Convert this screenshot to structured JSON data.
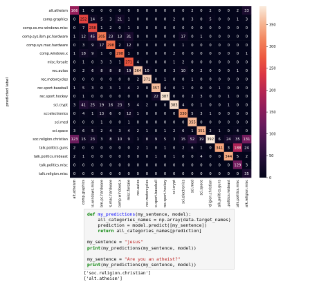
{
  "chart_data": {
    "type": "heatmap",
    "ylabel": "predicted label",
    "categories": [
      "alt.atheism",
      "comp.graphics",
      "comp.os.ms-windows.misc",
      "comp.sys.ibm.pc.hardware",
      "comp.sys.mac.hardware",
      "comp.windows.x",
      "misc.forsale",
      "rec.autos",
      "rec.motorcycles",
      "rec.sport.baseball",
      "rec.sport.hockey",
      "sci.crypt",
      "sci.electronics",
      "sci.med",
      "sci.space",
      "soc.religion.christian",
      "talk.politics.guns",
      "talk.politics.mideast",
      "talk.politics.misc",
      "talk.religion.misc"
    ],
    "values": [
      [
        166,
        1,
        0,
        0,
        0,
        0,
        0,
        0,
        0,
        0,
        0,
        0,
        0,
        2,
        0,
        2,
        0,
        0,
        2,
        33
      ],
      [
        0,
        252,
        14,
        5,
        3,
        21,
        1,
        0,
        0,
        0,
        0,
        2,
        0,
        3,
        0,
        5,
        0,
        0,
        1,
        3
      ],
      [
        0,
        7,
        258,
        1,
        2,
        0,
        1,
        0,
        0,
        0,
        0,
        0,
        0,
        0,
        0,
        0,
        0,
        0,
        0,
        0
      ],
      [
        1,
        12,
        45,
        305,
        23,
        13,
        31,
        0,
        0,
        0,
        0,
        0,
        17,
        0,
        1,
        0,
        0,
        0,
        0,
        0
      ],
      [
        0,
        3,
        9,
        17,
        298,
        2,
        12,
        0,
        0,
        0,
        0,
        0,
        1,
        0,
        0,
        0,
        0,
        0,
        0,
        0
      ],
      [
        1,
        18,
        9,
        1,
        0,
        298,
        1,
        0,
        0,
        0,
        0,
        2,
        0,
        0,
        0,
        0,
        0,
        0,
        0,
        1
      ],
      [
        0,
        1,
        0,
        3,
        3,
        1,
        271,
        4,
        0,
        0,
        0,
        1,
        2,
        0,
        0,
        0,
        0,
        0,
        0,
        0
      ],
      [
        0,
        2,
        6,
        8,
        8,
        8,
        19,
        364,
        10,
        0,
        0,
        3,
        10,
        0,
        2,
        0,
        0,
        0,
        1,
        0
      ],
      [
        0,
        0,
        0,
        0,
        0,
        0,
        0,
        2,
        371,
        0,
        1,
        0,
        0,
        1,
        0,
        0,
        0,
        0,
        0,
        0
      ],
      [
        1,
        5,
        3,
        0,
        3,
        1,
        4,
        2,
        0,
        357,
        4,
        0,
        1,
        0,
        0,
        0,
        1,
        0,
        0,
        0
      ],
      [
        0,
        1,
        0,
        0,
        0,
        0,
        0,
        0,
        0,
        22,
        387,
        0,
        0,
        2,
        3,
        0,
        0,
        1,
        0,
        0
      ],
      [
        3,
        41,
        25,
        19,
        16,
        23,
        5,
        4,
        2,
        0,
        0,
        383,
        4,
        0,
        1,
        0,
        0,
        1,
        0,
        0
      ],
      [
        0,
        4,
        1,
        13,
        6,
        0,
        12,
        1,
        0,
        0,
        0,
        0,
        330,
        5,
        3,
        1,
        0,
        0,
        0,
        0
      ],
      [
        0,
        0,
        0,
        1,
        0,
        0,
        1,
        0,
        0,
        0,
        0,
        0,
        0,
        355,
        0,
        0,
        0,
        0,
        0,
        0
      ],
      [
        3,
        6,
        5,
        2,
        4,
        3,
        4,
        2,
        1,
        0,
        1,
        2,
        6,
        1,
        351,
        2,
        1,
        0,
        4,
        0
      ],
      [
        123,
        15,
        23,
        3,
        8,
        10,
        9,
        1,
        8,
        9,
        5,
        3,
        15,
        52,
        19,
        392,
        6,
        24,
        35,
        131
      ],
      [
        2,
        0,
        0,
        0,
        0,
        0,
        0,
        2,
        1,
        0,
        1,
        0,
        2,
        6,
        1,
        0,
        341,
        3,
        188,
        24
      ],
      [
        2,
        1,
        0,
        0,
        0,
        0,
        0,
        0,
        0,
        1,
        0,
        1,
        0,
        0,
        4,
        0,
        0,
        344,
        5,
        2
      ],
      [
        0,
        0,
        0,
        0,
        0,
        0,
        0,
        0,
        0,
        0,
        0,
        0,
        0,
        0,
        0,
        0,
        0,
        0,
        129,
        3
      ],
      [
        0,
        0,
        0,
        0,
        0,
        0,
        0,
        0,
        0,
        0,
        0,
        0,
        0,
        0,
        0,
        0,
        0,
        0,
        0,
        35
      ]
    ],
    "vmin": 0,
    "vmax": 392,
    "colorbar_ticks": [
      0,
      50,
      100,
      150,
      200,
      250,
      300,
      350
    ],
    "colormap": "rocket"
  },
  "code": {
    "lines": [
      [
        {
          "t": "def ",
          "c": "kw"
        },
        {
          "t": "my_predictions",
          "c": "fn"
        },
        {
          "t": "(my_sentence, model):",
          "c": ""
        }
      ],
      [
        {
          "t": "    all_categories_names = np.array(data.target_names)",
          "c": ""
        }
      ],
      [
        {
          "t": "    prediction = model.predict([my_sentence])",
          "c": ""
        }
      ],
      [
        {
          "t": "    ",
          "c": ""
        },
        {
          "t": "return ",
          "c": "kw"
        },
        {
          "t": "all_categories_names[prediction]",
          "c": ""
        }
      ],
      [
        {
          "t": "",
          "c": ""
        }
      ],
      [
        {
          "t": "my_sentence = ",
          "c": ""
        },
        {
          "t": "\"jesus\"",
          "c": "st"
        }
      ],
      [
        {
          "t": "print",
          "c": "kw"
        },
        {
          "t": "(my_predictions(my_sentence, model))",
          "c": ""
        }
      ],
      [
        {
          "t": "",
          "c": ""
        }
      ],
      [
        {
          "t": "my_sentence = ",
          "c": ""
        },
        {
          "t": "\"Are you an atheist?\"",
          "c": "st"
        }
      ],
      [
        {
          "t": "print",
          "c": "kw"
        },
        {
          "t": "(my_predictions(my_sentence, model))",
          "c": ""
        }
      ]
    ]
  },
  "output": {
    "lines": [
      "['soc.religion.christian']",
      "['alt.atheism']"
    ]
  }
}
